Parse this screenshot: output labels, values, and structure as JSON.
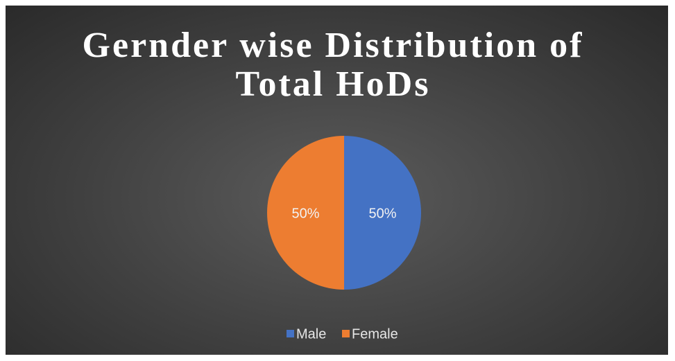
{
  "chart_data": {
    "type": "pie",
    "title": "Gernder wise Distribution of Total HoDs",
    "categories": [
      "Male",
      "Female"
    ],
    "values": [
      50,
      50
    ],
    "value_labels": [
      "50%",
      "50%"
    ],
    "colors": [
      "#4472c4",
      "#ed7d31"
    ],
    "legend": "bottom"
  }
}
